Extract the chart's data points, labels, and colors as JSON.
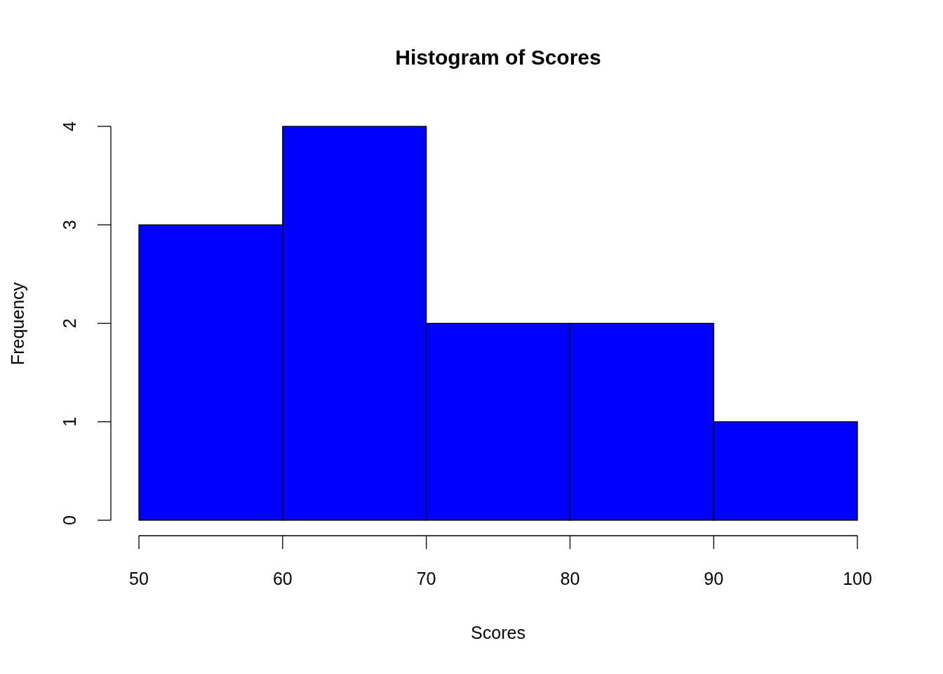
{
  "chart_data": {
    "type": "histogram",
    "title": "Histogram of Scores",
    "xlabel": "Scores",
    "ylabel": "Frequency",
    "bins": [
      50,
      60,
      70,
      80,
      90,
      100
    ],
    "values": [
      3,
      4,
      2,
      2,
      1
    ],
    "color": "#0000ff",
    "xlim": [
      50,
      100
    ],
    "xticks": [
      50,
      60,
      70,
      80,
      90,
      100
    ],
    "ylim": [
      0,
      4
    ],
    "yticks": [
      0,
      1,
      2,
      3,
      4
    ],
    "grid": false
  }
}
